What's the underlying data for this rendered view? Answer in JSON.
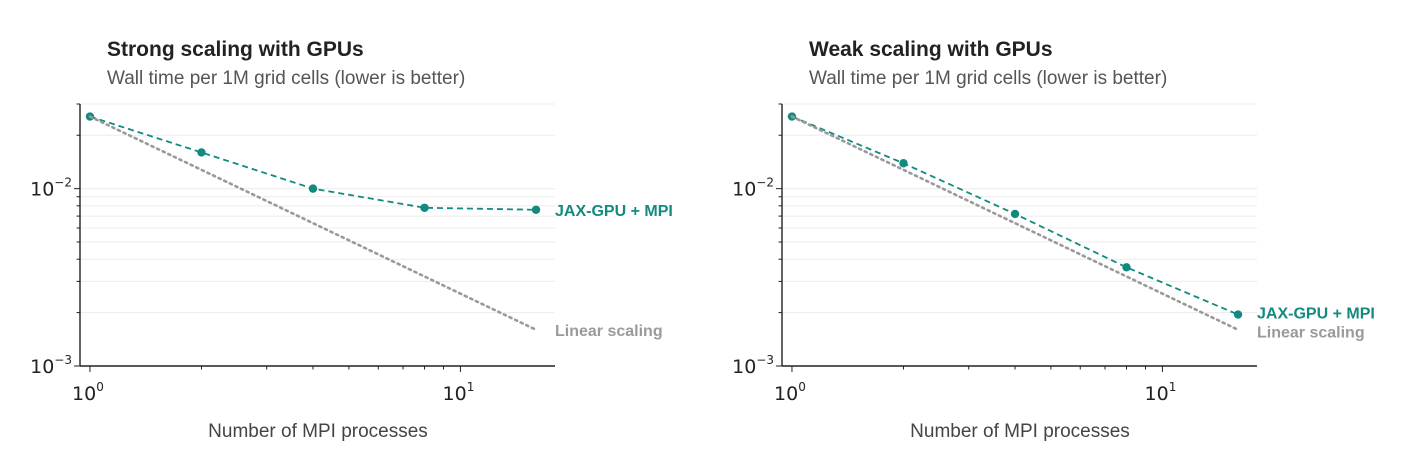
{
  "colors": {
    "jax": "#138a80",
    "linear": "#9a9a9a",
    "axis": "#222222",
    "grid": "#ececec"
  },
  "chart_data": [
    {
      "type": "line",
      "title": "Strong scaling with GPUs",
      "subtitle": "Wall time per 1M grid cells (lower is better)",
      "xlabel": "Number of MPI processes",
      "ylabel": "",
      "xscale": "log",
      "yscale": "log",
      "xlim": [
        0.94,
        18
      ],
      "ylim": [
        0.001,
        0.03
      ],
      "x_ticks": [
        {
          "value": 1,
          "label": "10",
          "exp": "0"
        },
        {
          "value": 10,
          "label": "10",
          "exp": "1"
        }
      ],
      "y_ticks": [
        {
          "value": 0.01,
          "label": "10",
          "exp": "−2"
        },
        {
          "value": 0.001,
          "label": "10",
          "exp": "−3"
        }
      ],
      "grid": "horizontal minor",
      "series": [
        {
          "name": "JAX-GPU + MPI",
          "style": "dashed-markers",
          "x": [
            1,
            2,
            4,
            8,
            16
          ],
          "y": [
            0.0255,
            0.016,
            0.01,
            0.0078,
            0.0076
          ]
        },
        {
          "name": "Linear scaling",
          "style": "dotted",
          "x": [
            1,
            16
          ],
          "y": [
            0.0255,
            0.0016
          ]
        }
      ]
    },
    {
      "type": "line",
      "title": "Weak scaling with GPUs",
      "subtitle": "Wall time per 1M grid cells (lower is better)",
      "xlabel": "Number of MPI processes",
      "ylabel": "",
      "xscale": "log",
      "yscale": "log",
      "xlim": [
        0.94,
        18
      ],
      "ylim": [
        0.001,
        0.03
      ],
      "x_ticks": [
        {
          "value": 1,
          "label": "10",
          "exp": "0"
        },
        {
          "value": 10,
          "label": "10",
          "exp": "1"
        }
      ],
      "y_ticks": [
        {
          "value": 0.01,
          "label": "10",
          "exp": "−2"
        },
        {
          "value": 0.001,
          "label": "10",
          "exp": "−3"
        }
      ],
      "grid": "horizontal minor",
      "series": [
        {
          "name": "JAX-GPU + MPI",
          "style": "dashed-markers",
          "x": [
            1,
            2,
            4,
            8,
            16
          ],
          "y": [
            0.0255,
            0.0139,
            0.0072,
            0.0036,
            0.00195
          ]
        },
        {
          "name": "Linear scaling",
          "style": "dotted",
          "x": [
            1,
            16
          ],
          "y": [
            0.0255,
            0.0016
          ]
        }
      ]
    }
  ]
}
